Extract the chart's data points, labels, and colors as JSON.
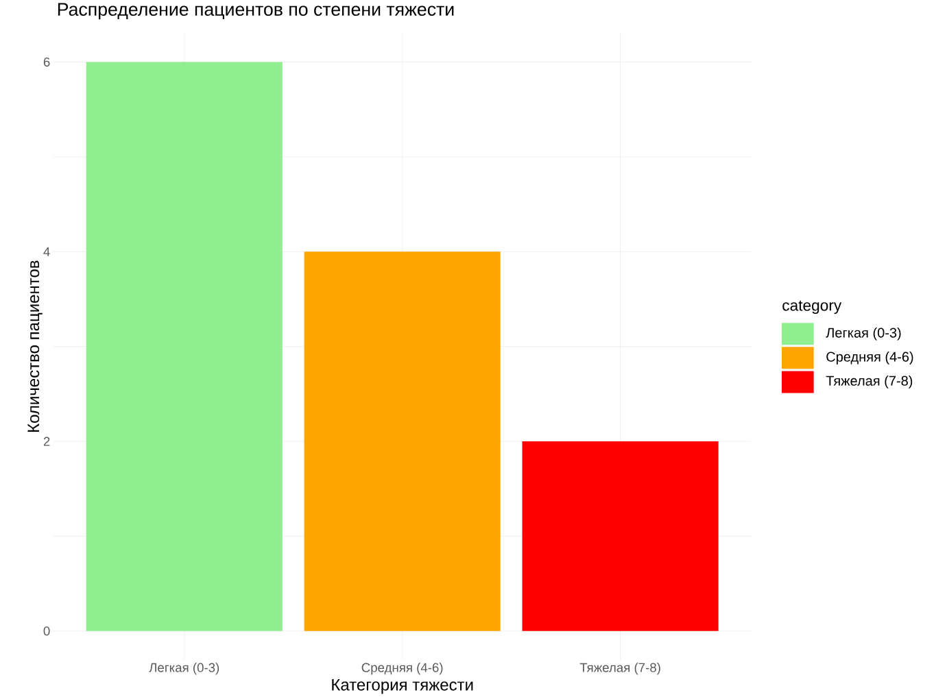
{
  "chart_data": {
    "type": "bar",
    "title": "Распределение пациентов по степени тяжести",
    "xlabel": "Категория тяжести",
    "ylabel": "Количество пациентов",
    "legend_title": "category",
    "categories": [
      "Легкая (0-3)",
      "Средняя (4-6)",
      "Тяжелая (7-8)"
    ],
    "series": [
      {
        "name": "Легкая (0-3)",
        "color": "#90ee90",
        "values": [
          6,
          null,
          null
        ]
      },
      {
        "name": "Средняя (4-6)",
        "color": "#ffa500",
        "values": [
          null,
          4,
          null
        ]
      },
      {
        "name": "Тяжелая (7-8)",
        "color": "#ff0000",
        "values": [
          null,
          null,
          2
        ]
      }
    ],
    "ylim": [
      -0.3,
      6.3
    ],
    "yticks": [
      0,
      {
        "value": 1,
        "label": null
      },
      2,
      {
        "value": 3,
        "label": null
      },
      4,
      {
        "value": 5,
        "label": null
      },
      6
    ],
    "grid": true,
    "legend": "right"
  }
}
